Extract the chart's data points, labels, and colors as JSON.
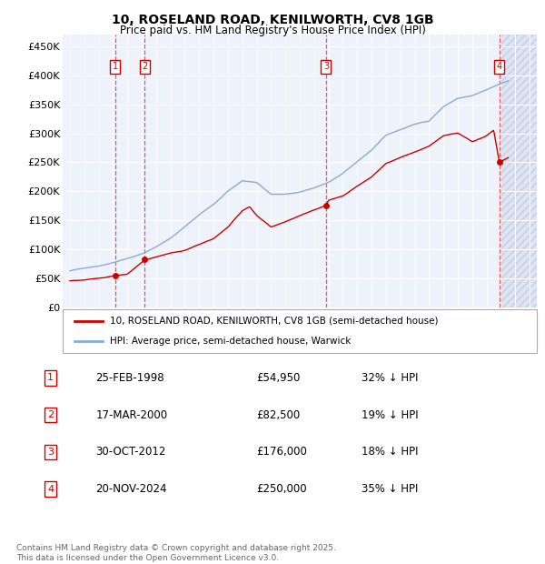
{
  "title": "10, ROSELAND ROAD, KENILWORTH, CV8 1GB",
  "subtitle": "Price paid vs. HM Land Registry's House Price Index (HPI)",
  "ylim": [
    0,
    470000
  ],
  "yticks": [
    0,
    50000,
    100000,
    150000,
    200000,
    250000,
    300000,
    350000,
    400000,
    450000
  ],
  "ytick_labels": [
    "£0",
    "£50K",
    "£100K",
    "£150K",
    "£200K",
    "£250K",
    "£300K",
    "£350K",
    "£400K",
    "£450K"
  ],
  "xlim_start": 1994.5,
  "xlim_end": 2027.5,
  "xticks": [
    1995,
    1996,
    1997,
    1998,
    1999,
    2000,
    2001,
    2002,
    2003,
    2004,
    2005,
    2006,
    2007,
    2008,
    2009,
    2010,
    2011,
    2012,
    2013,
    2014,
    2015,
    2016,
    2017,
    2018,
    2019,
    2020,
    2021,
    2022,
    2023,
    2024,
    2025,
    2026,
    2027
  ],
  "sale_dates": [
    1998.146,
    2000.205,
    2012.831,
    2024.893
  ],
  "sale_prices": [
    54950,
    82500,
    176000,
    250000
  ],
  "sale_labels": [
    "1",
    "2",
    "3",
    "4"
  ],
  "sale_color": "#cc0000",
  "hpi_color": "#88aadd",
  "vline_color": "#ee4444",
  "box_color": "#cc0000",
  "legend_sale_label": "10, ROSELAND ROAD, KENILWORTH, CV8 1GB (semi-detached house)",
  "legend_hpi_label": "HPI: Average price, semi-detached house, Warwick",
  "table_entries": [
    {
      "num": "1",
      "date": "25-FEB-1998",
      "price": "£54,950",
      "hpi": "32% ↓ HPI"
    },
    {
      "num": "2",
      "date": "17-MAR-2000",
      "price": "£82,500",
      "hpi": "19% ↓ HPI"
    },
    {
      "num": "3",
      "date": "30-OCT-2012",
      "price": "£176,000",
      "hpi": "18% ↓ HPI"
    },
    {
      "num": "4",
      "date": "20-NOV-2024",
      "price": "£250,000",
      "hpi": "35% ↓ HPI"
    }
  ],
  "footer": "Contains HM Land Registry data © Crown copyright and database right 2025.\nThis data is licensed under the Open Government Licence v3.0.",
  "background_color": "#ffffff",
  "plot_bg_color": "#eef2fa",
  "future_start": 2025.0,
  "hpi_key_years": [
    1995,
    1996,
    1997,
    1998,
    1999,
    2000,
    2001,
    2002,
    2003,
    2004,
    2005,
    2006,
    2007,
    2008,
    2009,
    2010,
    2011,
    2012,
    2013,
    2014,
    2015,
    2016,
    2017,
    2018,
    2019,
    2020,
    2021,
    2022,
    2023,
    2024,
    2024.9,
    2025.5
  ],
  "hpi_key_values": [
    63000,
    68000,
    72000,
    78000,
    85000,
    93000,
    105000,
    120000,
    140000,
    160000,
    178000,
    200000,
    218000,
    215000,
    195000,
    195000,
    198000,
    205000,
    215000,
    230000,
    250000,
    270000,
    295000,
    305000,
    315000,
    320000,
    345000,
    360000,
    365000,
    375000,
    385000,
    390000
  ],
  "sale_key_years": [
    1995,
    1996,
    1997,
    1998.15,
    1999,
    2000.21,
    2001,
    2002,
    2003,
    2004,
    2005,
    2006,
    2007,
    2007.5,
    2008,
    2009,
    2010,
    2011,
    2012,
    2012.83,
    2013,
    2014,
    2015,
    2016,
    2017,
    2018,
    2019,
    2020,
    2021,
    2022,
    2023,
    2024,
    2024.5,
    2024.89,
    2025.5
  ],
  "sale_key_values": [
    46000,
    47000,
    50000,
    54950,
    58000,
    82500,
    88000,
    95000,
    100000,
    110000,
    120000,
    140000,
    168000,
    175000,
    160000,
    140000,
    148000,
    158000,
    168000,
    176000,
    185000,
    192000,
    210000,
    225000,
    248000,
    258000,
    268000,
    278000,
    296000,
    300000,
    285000,
    295000,
    305000,
    250000,
    258000
  ]
}
